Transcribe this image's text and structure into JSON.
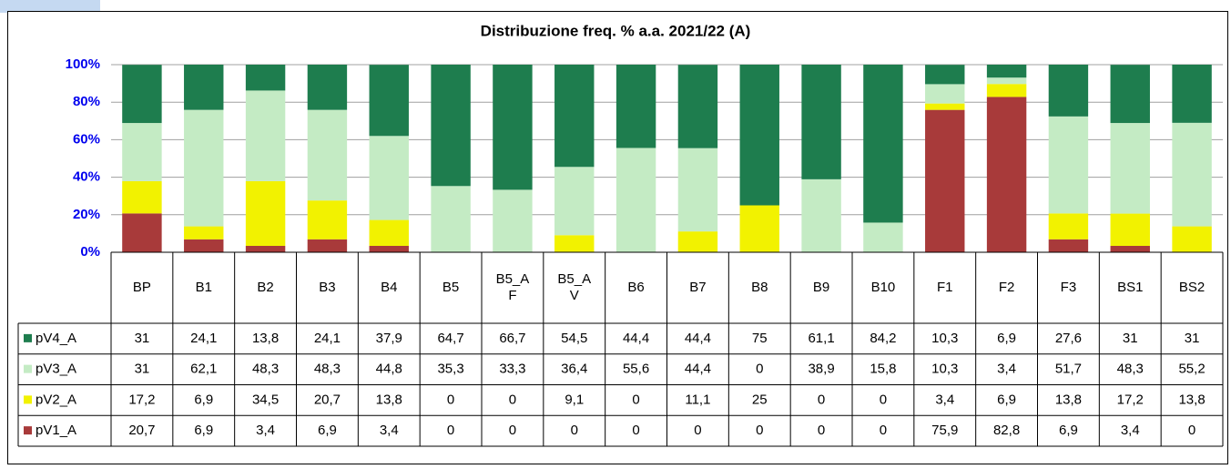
{
  "chart_data": {
    "type": "stacked_bar",
    "title": "Distribuzione freq. % a.a. 2021/22 (A)",
    "categories": [
      "BP",
      "B1",
      "B2",
      "B3",
      "B4",
      "B5",
      "B5_AF",
      "B5_AV",
      "B6",
      "B7",
      "B8",
      "B9",
      "B10",
      "F1",
      "F2",
      "F3",
      "BS1",
      "BS2"
    ],
    "series": [
      {
        "name": "pV4_A",
        "color": "#1e7d4e",
        "values": [
          31,
          24.1,
          13.8,
          24.1,
          37.9,
          64.7,
          66.7,
          54.5,
          44.4,
          44.4,
          75,
          61.1,
          84.2,
          10.3,
          6.9,
          27.6,
          31,
          31
        ],
        "value_labels": [
          "31",
          "24,1",
          "13,8",
          "24,1",
          "37,9",
          "64,7",
          "66,7",
          "54,5",
          "44,4",
          "44,4",
          "75",
          "61,1",
          "84,2",
          "10,3",
          "6,9",
          "27,6",
          "31",
          "31"
        ]
      },
      {
        "name": "pV3_A",
        "color": "#c4ebc4",
        "values": [
          31,
          62.1,
          48.3,
          48.3,
          44.8,
          35.3,
          33.3,
          36.4,
          55.6,
          44.4,
          0,
          38.9,
          15.8,
          10.3,
          3.4,
          51.7,
          48.3,
          55.2
        ],
        "value_labels": [
          "31",
          "62,1",
          "48,3",
          "48,3",
          "44,8",
          "35,3",
          "33,3",
          "36,4",
          "55,6",
          "44,4",
          "0",
          "38,9",
          "15,8",
          "10,3",
          "3,4",
          "51,7",
          "48,3",
          "55,2"
        ]
      },
      {
        "name": "pV2_A",
        "color": "#f2f200",
        "values": [
          17.2,
          6.9,
          34.5,
          20.7,
          13.8,
          0,
          0,
          9.1,
          0,
          11.1,
          25,
          0,
          0,
          3.4,
          6.9,
          13.8,
          17.2,
          13.8
        ],
        "value_labels": [
          "17,2",
          "6,9",
          "34,5",
          "20,7",
          "13,8",
          "0",
          "0",
          "9,1",
          "0",
          "11,1",
          "25",
          "0",
          "0",
          "3,4",
          "6,9",
          "13,8",
          "17,2",
          "13,8"
        ]
      },
      {
        "name": "pV1_A",
        "color": "#a83a3a",
        "values": [
          20.7,
          6.9,
          3.4,
          6.9,
          3.4,
          0,
          0,
          0,
          0,
          0,
          0,
          0,
          0,
          75.9,
          82.8,
          6.9,
          3.4,
          0
        ],
        "value_labels": [
          "20,7",
          "6,9",
          "3,4",
          "6,9",
          "3,4",
          "0",
          "0",
          "0",
          "0",
          "0",
          "0",
          "0",
          "0",
          "75,9",
          "82,8",
          "6,9",
          "3,4",
          "0"
        ]
      }
    ],
    "ylim": [
      0,
      100
    ],
    "yticks": [
      {
        "value": 0,
        "label": "0%"
      },
      {
        "value": 20,
        "label": "20%"
      },
      {
        "value": 40,
        "label": "40%"
      },
      {
        "value": 60,
        "label": "60%"
      },
      {
        "value": 80,
        "label": "80%"
      },
      {
        "value": 100,
        "label": "100%"
      }
    ],
    "grid": true
  }
}
